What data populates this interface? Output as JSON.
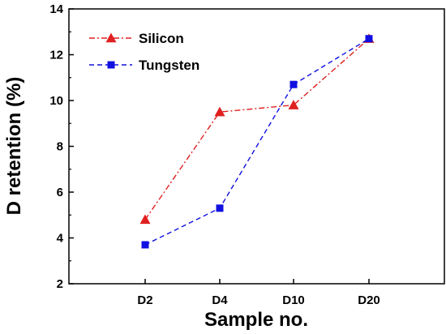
{
  "chart_data": {
    "type": "line",
    "categories": [
      "D2",
      "D4",
      "D10",
      "D20"
    ],
    "series": [
      {
        "name": "Silicon",
        "values": [
          4.8,
          9.5,
          9.8,
          12.7
        ],
        "color": "#e02020",
        "marker": "triangle",
        "line_style": "dash-dot"
      },
      {
        "name": "Tungsten",
        "values": [
          3.7,
          5.3,
          10.7,
          12.7
        ],
        "color": "#1010e0",
        "marker": "square",
        "line_style": "dashed"
      }
    ],
    "xlabel": "Sample no.",
    "ylabel": "D retention  (%)",
    "ylim": [
      2,
      14
    ],
    "yticks": [
      2,
      4,
      6,
      8,
      10,
      12,
      14
    ],
    "grid": false,
    "legend_position": "top-left"
  }
}
